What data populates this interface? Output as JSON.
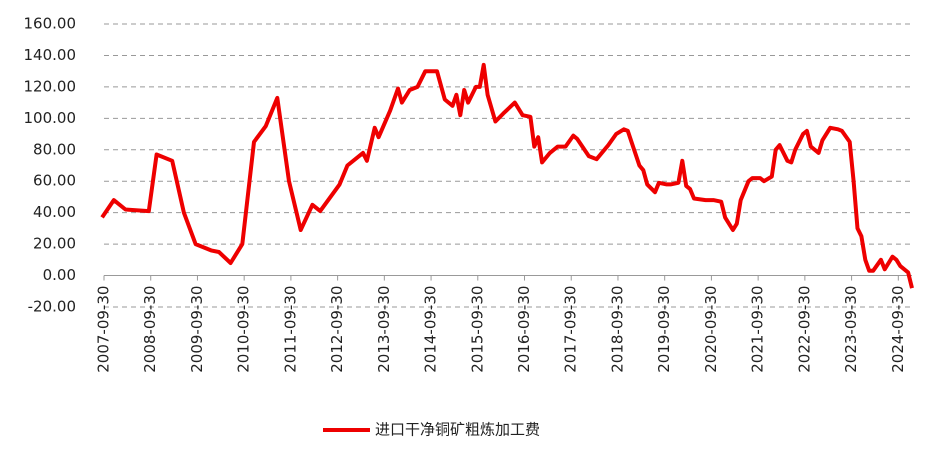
{
  "chart_data": {
    "type": "line",
    "series": [
      {
        "name": "进口干净铜矿粗炼加工费",
        "color": "#ee0000",
        "x": [
          "2007-09",
          "2007-12",
          "2008-03",
          "2008-09",
          "2008-11",
          "2009-03",
          "2009-06",
          "2009-09",
          "2010-01",
          "2010-03",
          "2010-06",
          "2010-09",
          "2010-12",
          "2011-03",
          "2011-06",
          "2011-09",
          "2011-12",
          "2012-03",
          "2012-05",
          "2012-10",
          "2012-12",
          "2013-04",
          "2013-05",
          "2013-07",
          "2013-08",
          "2013-11",
          "2014-01",
          "2014-02",
          "2014-04",
          "2014-06",
          "2014-08",
          "2014-11",
          "2015-01",
          "2015-03",
          "2015-04",
          "2015-05",
          "2015-06",
          "2015-07",
          "2015-09",
          "2015-10",
          "2015-11",
          "2015-12",
          "2016-02",
          "2016-04",
          "2016-07",
          "2016-09",
          "2016-11",
          "2016-12",
          "2017-01",
          "2017-02",
          "2017-04",
          "2017-06",
          "2017-08",
          "2017-10",
          "2017-11",
          "2018-02",
          "2018-04",
          "2018-07",
          "2018-09",
          "2018-11",
          "2018-12",
          "2019-03",
          "2019-04",
          "2019-05",
          "2019-07",
          "2019-08",
          "2019-10",
          "2019-11",
          "2020-01",
          "2020-02",
          "2020-03",
          "2020-04",
          "2020-05",
          "2020-08",
          "2020-10",
          "2020-12",
          "2021-01",
          "2021-03",
          "2021-04",
          "2021-05",
          "2021-07",
          "2021-08",
          "2021-10",
          "2021-11",
          "2022-01",
          "2022-02",
          "2022-03",
          "2022-05",
          "2022-06",
          "2022-07",
          "2022-09",
          "2022-10",
          "2022-11",
          "2023-01",
          "2023-02",
          "2023-04",
          "2023-06",
          "2023-07",
          "2023-09",
          "2023-10",
          "2023-11",
          "2023-12",
          "2024-01",
          "2024-02",
          "2024-03",
          "2024-05",
          "2024-06",
          "2024-08",
          "2024-09",
          "2024-10",
          "2024-12",
          "2025-01"
        ],
        "values": [
          37,
          48,
          42,
          41,
          77,
          73,
          40,
          20,
          16,
          15,
          8,
          20,
          85,
          95,
          113,
          60,
          29,
          45,
          41,
          58,
          70,
          78,
          73,
          94,
          88,
          105,
          119,
          110,
          118,
          120,
          130,
          130,
          112,
          108,
          115,
          102,
          118,
          110,
          120,
          120,
          134,
          115,
          98,
          103,
          110,
          102,
          101,
          82,
          88,
          72,
          78,
          82,
          82,
          89,
          87,
          76,
          74,
          83,
          90,
          93,
          92,
          70,
          67,
          58,
          53,
          59,
          58,
          58,
          59,
          73,
          57,
          55,
          49,
          48,
          48,
          47,
          37,
          29,
          33,
          48,
          60,
          62,
          62,
          60,
          63,
          80,
          83,
          73,
          72,
          80,
          90,
          92,
          82,
          78,
          86,
          94,
          93,
          92,
          85,
          60,
          30,
          25,
          10,
          3,
          3,
          10,
          4,
          12,
          10,
          6,
          2,
          -8
        ]
      }
    ],
    "xlim": [
      "2007-09-30",
      "2025-01"
    ],
    "xticks": [
      "2007-09-30",
      "2008-09-30",
      "2009-09-30",
      "2010-09-30",
      "2011-09-30",
      "2012-09-30",
      "2013-09-30",
      "2014-09-30",
      "2015-09-30",
      "2016-09-30",
      "2017-09-30",
      "2018-09-30",
      "2019-09-30",
      "2020-09-30",
      "2021-09-30",
      "2022-09-30",
      "2023-09-30",
      "2024-09-30"
    ],
    "ylim": [
      -20,
      160
    ],
    "yticks": [
      {
        "value": -20,
        "label": "-20.00"
      },
      {
        "value": 0,
        "label": "0.00"
      },
      {
        "value": 20,
        "label": "20.00"
      },
      {
        "value": 40,
        "label": "40.00"
      },
      {
        "value": 60,
        "label": "60.00"
      },
      {
        "value": 80,
        "label": "80.00"
      },
      {
        "value": 100,
        "label": "100.00"
      },
      {
        "value": 120,
        "label": "120.00"
      },
      {
        "value": 140,
        "label": "140.00"
      },
      {
        "value": 160,
        "label": "160.00"
      }
    ],
    "grid": true
  }
}
